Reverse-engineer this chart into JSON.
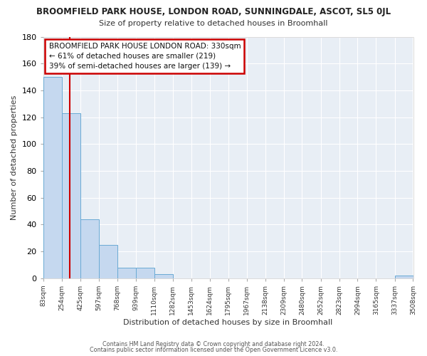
{
  "title1": "BROOMFIELD PARK HOUSE, LONDON ROAD, SUNNINGDALE, ASCOT, SL5 0JL",
  "title2": "Size of property relative to detached houses in Broomhall",
  "xlabel": "Distribution of detached houses by size in Broomhall",
  "ylabel": "Number of detached properties",
  "bin_edges": [
    83,
    254,
    425,
    597,
    768,
    939,
    1110,
    1282,
    1453,
    1624,
    1795,
    1967,
    2138,
    2309,
    2480,
    2652,
    2823,
    2994,
    3165,
    3337,
    3508
  ],
  "bin_counts": [
    150,
    123,
    44,
    25,
    8,
    8,
    3,
    0,
    0,
    0,
    0,
    0,
    0,
    0,
    0,
    0,
    0,
    0,
    0,
    2
  ],
  "property_size": 330,
  "bar_color": "#c5d8ef",
  "bar_edge_color": "#6aaad4",
  "vline_color": "#cc0000",
  "annotation_box_edge_color": "#cc0000",
  "annotation_title": "BROOMFIELD PARK HOUSE LONDON ROAD: 330sqm",
  "annotation_line1": "← 61% of detached houses are smaller (219)",
  "annotation_line2": "39% of semi-detached houses are larger (139) →",
  "ylim": [
    0,
    180
  ],
  "yticks": [
    0,
    20,
    40,
    60,
    80,
    100,
    120,
    140,
    160,
    180
  ],
  "footer1": "Contains HM Land Registry data © Crown copyright and database right 2024.",
  "footer2": "Contains public sector information licensed under the Open Government Licence v3.0.",
  "bg_color": "#ffffff",
  "ax_bg_color": "#e8eef5",
  "grid_color": "#ffffff"
}
